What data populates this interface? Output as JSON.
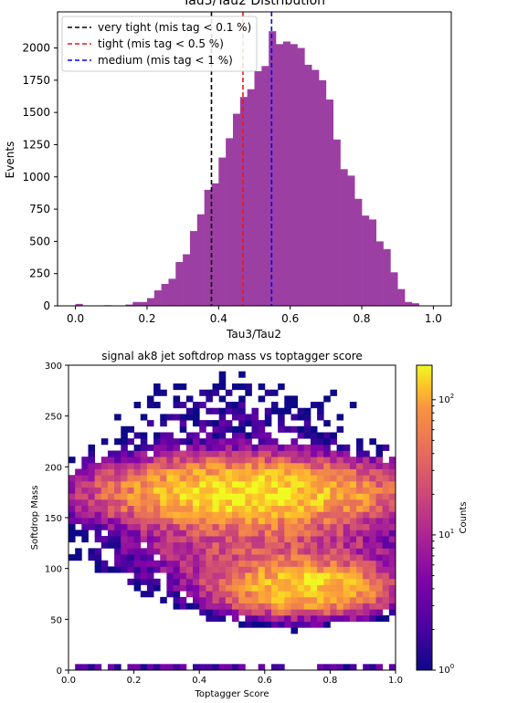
{
  "chart_data": [
    {
      "type": "bar",
      "title": "Tau3/Tau2 Distribution",
      "xlabel": "Tau3/Tau2",
      "ylabel": "Events",
      "xlim": [
        -0.05,
        1.05
      ],
      "ylim": [
        0,
        2280
      ],
      "xticks": [
        0.0,
        0.2,
        0.4,
        0.6,
        0.8,
        1.0
      ],
      "xtick_labels": [
        "0.0",
        "0.2",
        "0.4",
        "0.6",
        "0.8",
        "1.0"
      ],
      "yticks": [
        0,
        250,
        500,
        750,
        1000,
        1250,
        1500,
        1750,
        2000
      ],
      "ytick_labels": [
        "0",
        "250",
        "500",
        "750",
        "1000",
        "1250",
        "1500",
        "1750",
        "2000"
      ],
      "bar_color": "#9c3fa3",
      "bin_width": 0.02,
      "bins_x": [
        0.0,
        0.02,
        0.04,
        0.06,
        0.08,
        0.1,
        0.12,
        0.14,
        0.16,
        0.18,
        0.2,
        0.22,
        0.24,
        0.26,
        0.28,
        0.3,
        0.32,
        0.34,
        0.36,
        0.38,
        0.4,
        0.42,
        0.44,
        0.46,
        0.48,
        0.5,
        0.52,
        0.54,
        0.56,
        0.58,
        0.6,
        0.62,
        0.64,
        0.66,
        0.68,
        0.7,
        0.72,
        0.74,
        0.76,
        0.78,
        0.8,
        0.82,
        0.84,
        0.86,
        0.88,
        0.9,
        0.92,
        0.94,
        0.96,
        0.98
      ],
      "values": [
        15,
        0,
        0,
        0,
        5,
        0,
        0,
        10,
        30,
        30,
        60,
        120,
        170,
        210,
        340,
        400,
        580,
        710,
        900,
        950,
        1150,
        1300,
        1490,
        1620,
        1680,
        1820,
        1860,
        2130,
        2030,
        2050,
        2030,
        2000,
        1870,
        1830,
        1750,
        1600,
        1290,
        1060,
        1010,
        830,
        700,
        670,
        500,
        440,
        260,
        130,
        30,
        20,
        0,
        0
      ],
      "vlines": [
        {
          "name": "very tight (mis tag < 0.1 %)",
          "x": 0.38,
          "color": "#000000"
        },
        {
          "name": "tight (mis tag < 0.5 %)",
          "x": 0.468,
          "color": "#e31a1c"
        },
        {
          "name": "medium (mis tag < 1 %)",
          "x": 0.548,
          "color": "#0000ff"
        }
      ],
      "legend_loc": "upper-left"
    },
    {
      "type": "heatmap",
      "title": "signal ak8 jet softdrop mass vs toptagger score",
      "xlabel": "Toptagger Score",
      "ylabel": "Softdrop Mass",
      "xlim": [
        0.0,
        1.0
      ],
      "ylim": [
        0,
        300
      ],
      "xticks": [
        0.0,
        0.2,
        0.4,
        0.6,
        0.8,
        1.0
      ],
      "xtick_labels": [
        "0.0",
        "0.2",
        "0.4",
        "0.6",
        "0.8",
        "1.0"
      ],
      "yticks": [
        0,
        50,
        100,
        150,
        200,
        250,
        300
      ],
      "ytick_labels": [
        "0",
        "50",
        "100",
        "150",
        "200",
        "250",
        "300"
      ],
      "bins": [
        50,
        50
      ],
      "log_color_scale": true,
      "colorbar_label": "Counts",
      "colorbar_range": [
        1,
        180
      ],
      "colorbar_ticks": [
        "10^0",
        "10^1",
        "10^2"
      ],
      "colormap": "plasma",
      "missing_color": "#ffffff",
      "counts_description": "counts concentrated in band near mass 175 for score 0.25-0.85 (peak ~150) and second band near mass 80 for score 0.55-0.9 (peak ~120); sparse row at mass 0-5 across scores"
    }
  ]
}
